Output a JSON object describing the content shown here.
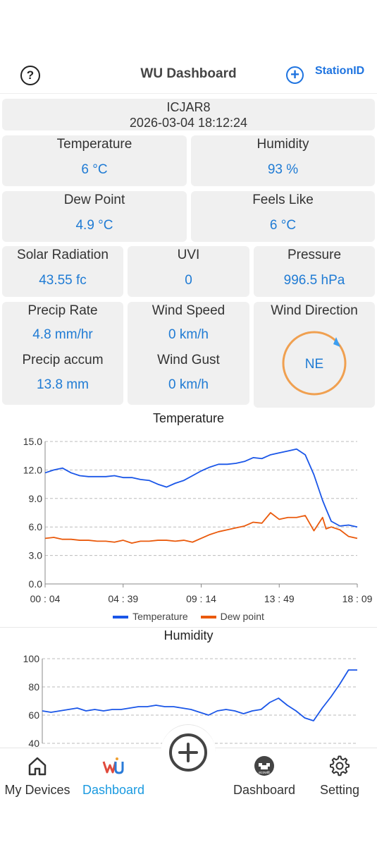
{
  "header": {
    "title": "WU Dashboard",
    "help_icon": "?",
    "add_icon": "+",
    "station_label": "StationID"
  },
  "station": {
    "id": "ICJAR8",
    "datetime": "2026-03-04 18:12:24"
  },
  "metrics": {
    "temperature": {
      "label": "Temperature",
      "value": "6 °C"
    },
    "humidity": {
      "label": "Humidity",
      "value": "93 %"
    },
    "dew_point": {
      "label": "Dew Point",
      "value": "4.9 °C"
    },
    "feels_like": {
      "label": "Feels Like",
      "value": "6 °C"
    },
    "solar": {
      "label": "Solar Radiation",
      "value": "43.55 fc"
    },
    "uvi": {
      "label": "UVI",
      "value": "0"
    },
    "pressure": {
      "label": "Pressure",
      "value": "996.5 hPa"
    },
    "precip_rate": {
      "label": "Precip Rate",
      "value": "4.8 mm/hr"
    },
    "precip_accum": {
      "label": "Precip accum",
      "value": "13.8 mm"
    },
    "wind_speed": {
      "label": "Wind Speed",
      "value": "0 km/h"
    },
    "wind_gust": {
      "label": "Wind Gust",
      "value": "0 km/h"
    },
    "wind_dir": {
      "label": "Wind Direction",
      "value": "NE"
    }
  },
  "colors": {
    "accent": "#1f7bd4",
    "temperature": "#1a56e8",
    "dew": "#ea5a0c",
    "compass": "#f0a050"
  },
  "chart_data": [
    {
      "type": "line",
      "title": "Temperature",
      "ylim": [
        0,
        15
      ],
      "yticks": [
        "15.0",
        "12.0",
        "9.0",
        "6.0",
        "3.0",
        "0.0"
      ],
      "xticks": [
        "00 : 04",
        "04 : 39",
        "09 : 14",
        "13 : 49",
        "18 : 09"
      ],
      "x": [
        0,
        0.5,
        1,
        1.5,
        2,
        2.5,
        3,
        3.5,
        4,
        4.5,
        5,
        5.5,
        6,
        6.5,
        7,
        7.5,
        8,
        8.5,
        9,
        9.5,
        10,
        10.5,
        11,
        11.5,
        12,
        12.5,
        13,
        13.5,
        14,
        14.5,
        15,
        15.5,
        16,
        16.2,
        16.5,
        17,
        17.5,
        18
      ],
      "series": [
        {
          "name": "Temperature",
          "values": [
            11.7,
            12.0,
            12.2,
            11.7,
            11.4,
            11.3,
            11.3,
            11.3,
            11.4,
            11.2,
            11.2,
            11.0,
            10.9,
            10.5,
            10.2,
            10.6,
            10.9,
            11.4,
            11.9,
            12.3,
            12.6,
            12.6,
            12.7,
            12.9,
            13.3,
            13.2,
            13.6,
            13.8,
            14.0,
            14.2,
            13.6,
            11.5,
            8.8,
            7.9,
            6.6,
            6.1,
            6.2,
            6.0
          ]
        },
        {
          "name": "Dew point",
          "values": [
            4.8,
            4.9,
            4.7,
            4.7,
            4.6,
            4.6,
            4.5,
            4.5,
            4.4,
            4.6,
            4.3,
            4.5,
            4.5,
            4.6,
            4.6,
            4.5,
            4.6,
            4.4,
            4.8,
            5.2,
            5.5,
            5.7,
            5.9,
            6.1,
            6.5,
            6.4,
            7.5,
            6.8,
            7.0,
            7.0,
            7.2,
            5.6,
            7.0,
            5.8,
            6.0,
            5.7,
            5.0,
            4.8
          ]
        }
      ]
    },
    {
      "type": "line",
      "title": "Humidity",
      "ylim": [
        40,
        100
      ],
      "yticks": [
        "100",
        "80",
        "60",
        "40"
      ],
      "x": [
        0,
        0.5,
        1,
        1.5,
        2,
        2.5,
        3,
        3.5,
        4,
        4.5,
        5,
        5.5,
        6,
        6.5,
        7,
        7.5,
        8,
        8.5,
        9,
        9.5,
        10,
        10.5,
        11,
        11.5,
        12,
        12.5,
        13,
        13.5,
        14,
        14.5,
        15,
        15.5,
        16,
        16.5,
        17,
        17.5,
        18
      ],
      "series": [
        {
          "name": "Humidity",
          "values": [
            63,
            62,
            63,
            64,
            65,
            63,
            64,
            63,
            64,
            64,
            65,
            66,
            66,
            67,
            66,
            66,
            65,
            64,
            62,
            60,
            63,
            64,
            63,
            61,
            63,
            64,
            69,
            72,
            67,
            63,
            58,
            56,
            65,
            73,
            82,
            92,
            92
          ]
        }
      ]
    }
  ],
  "legend": {
    "temperature": "Temperature",
    "dew": "Dew point"
  },
  "nav": {
    "my_devices": "My Devices",
    "wu_dashboard": "Dashboard",
    "ecowitt_dashboard": "Dashboard",
    "setting": "Setting",
    "ecowitt_badge": "ecowitt"
  }
}
